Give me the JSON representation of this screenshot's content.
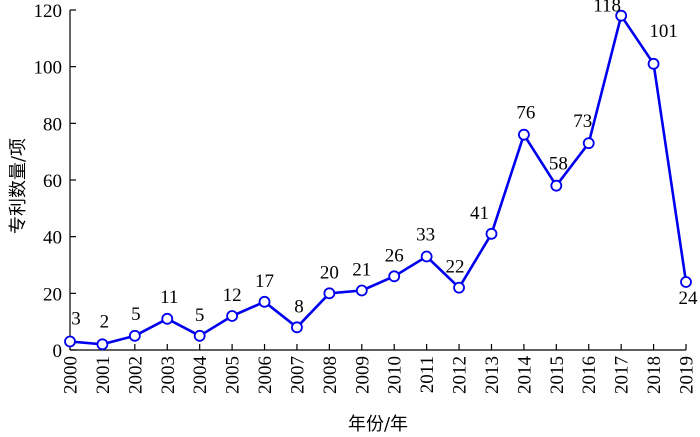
{
  "chart_data": {
    "type": "line",
    "title": "",
    "xlabel": "年份/年",
    "ylabel": "专利数量/项",
    "x": [
      "2000",
      "2001",
      "2002",
      "2003",
      "2004",
      "2005",
      "2006",
      "2007",
      "2008",
      "2009",
      "2010",
      "2011",
      "2012",
      "2013",
      "2014",
      "2015",
      "2016",
      "2017",
      "2018",
      "2019"
    ],
    "series": [
      {
        "values": [
          3,
          2,
          5,
          11,
          5,
          12,
          17,
          8,
          20,
          21,
          26,
          33,
          22,
          41,
          76,
          58,
          73,
          118,
          101,
          24
        ],
        "labels": [
          "3",
          "2",
          "5",
          "11",
          "5",
          "12",
          "17",
          "8",
          "20",
          "21",
          "26",
          "33",
          "22",
          "41",
          "76",
          "58",
          "73",
          "118",
          "101",
          "24"
        ]
      }
    ],
    "ylim": [
      0,
      120
    ],
    "yticks": [
      "0",
      "20",
      "40",
      "60",
      "80",
      "100",
      "120"
    ],
    "grid": false,
    "legend": "none",
    "colors": {
      "line": "#0000ee",
      "marker_fill": "#ffffff",
      "axis": "#000000"
    }
  }
}
